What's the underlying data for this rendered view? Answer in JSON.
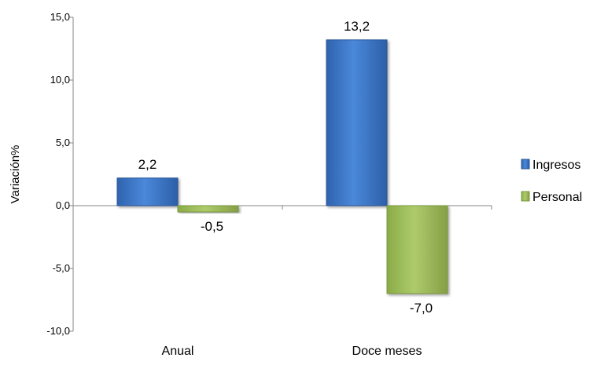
{
  "chart_data": {
    "type": "bar",
    "categories": [
      "Anual",
      "Doce meses"
    ],
    "series": [
      {
        "name": "Ingresos",
        "values": [
          2.2,
          13.2
        ],
        "labels": [
          "2,2",
          "13,2"
        ]
      },
      {
        "name": "Personal",
        "values": [
          -0.5,
          -7.0
        ],
        "labels": [
          "-0,5",
          "-7,0"
        ]
      }
    ],
    "ylabel": "Variación%",
    "ylim": [
      -10,
      15
    ],
    "yticks": [
      {
        "value": 15,
        "label": "15,0"
      },
      {
        "value": 10,
        "label": "10,0"
      },
      {
        "value": 5,
        "label": "5,0"
      },
      {
        "value": 0,
        "label": "0,0"
      },
      {
        "value": -5,
        "label": "-5,0"
      },
      {
        "value": -10,
        "label": "-10,0"
      }
    ],
    "grid": false,
    "legend_position": "right",
    "colors": {
      "Ingresos": "#3E78C9",
      "Personal": "#9BBB59"
    }
  }
}
